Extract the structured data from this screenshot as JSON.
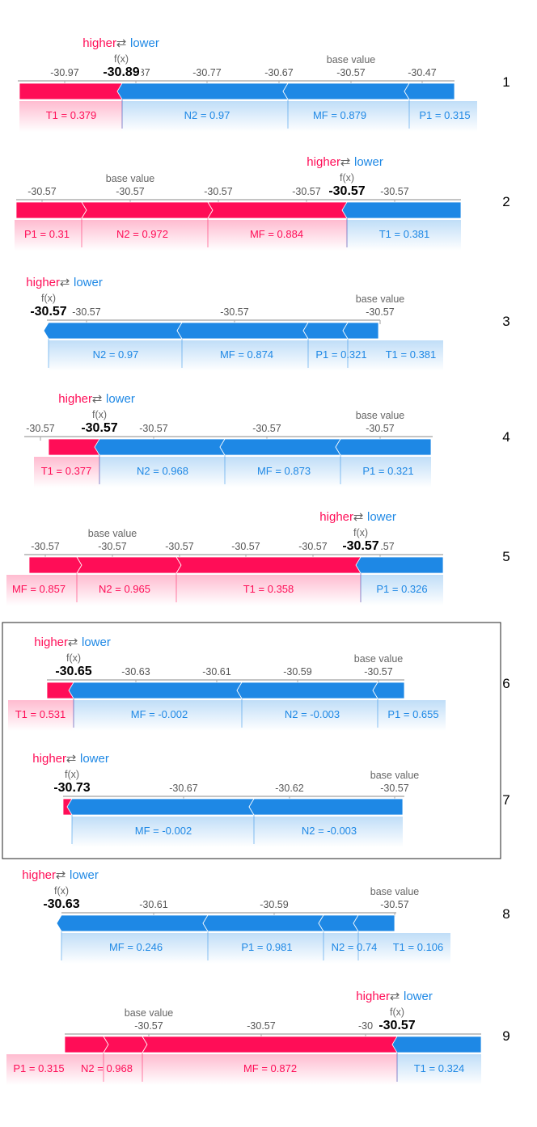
{
  "legend": {
    "higher": "higher",
    "lower": "lower",
    "fx_label": "f(x)",
    "base_label": "base value"
  },
  "colors": {
    "positive": "#ff0d57",
    "negative": "#1e88e5",
    "axis": "#b0b0b0",
    "tick_text": "#555555"
  },
  "chart_data": [
    {
      "type": "force",
      "row_label": "1",
      "fx_display": "-30.89",
      "ticks": [
        "-30.97",
        "-30.87",
        "-30.77",
        "-30.67",
        "-30.57",
        "-30.47"
      ],
      "positive": [
        {
          "label": "T1 = 0.379"
        }
      ],
      "negative": [
        {
          "label": "N2 = 0.97"
        },
        {
          "label": "MF = 0.879"
        },
        {
          "label": "P1 = 0.315"
        }
      ]
    },
    {
      "type": "force",
      "row_label": "2",
      "fx_display": "-30.57",
      "ticks": [
        "-30.57",
        "-30.57",
        "-30.57",
        "-30.57",
        "-30.57"
      ],
      "positive": [
        {
          "label": "P1 = 0.31"
        },
        {
          "label": "N2 = 0.972"
        },
        {
          "label": "MF = 0.884"
        }
      ],
      "negative": [
        {
          "label": "T1 = 0.381"
        }
      ]
    },
    {
      "type": "force",
      "row_label": "3",
      "fx_display": "-30.57",
      "ticks": [
        "-30.57",
        "-30.57",
        "-30.57"
      ],
      "positive": [],
      "negative": [
        {
          "label": "N2 = 0.97"
        },
        {
          "label": "MF = 0.874"
        },
        {
          "label": "P1 = 0.321"
        },
        {
          "label": "T1 = 0.381"
        }
      ]
    },
    {
      "type": "force",
      "row_label": "4",
      "fx_display": "-30.57",
      "ticks": [
        "-30.57",
        "-30.57",
        "-30.57",
        "-30.57"
      ],
      "positive": [
        {
          "label": "T1 = 0.377"
        }
      ],
      "negative": [
        {
          "label": "N2 = 0.968"
        },
        {
          "label": "MF = 0.873"
        },
        {
          "label": "P1 = 0.321"
        }
      ]
    },
    {
      "type": "force",
      "row_label": "5",
      "fx_display": "-30.57",
      "ticks": [
        "-30.57",
        "-30.57",
        "-30.57",
        "-30.57",
        "-30.57",
        "-30.57"
      ],
      "positive": [
        {
          "label": "MF = 0.857"
        },
        {
          "label": "N2 = 0.965"
        },
        {
          "label": "T1 = 0.358"
        }
      ],
      "negative": [
        {
          "label": "P1 = 0.326"
        }
      ]
    },
    {
      "type": "force",
      "row_label": "6",
      "fx_display": "-30.65",
      "ticks": [
        "-30.63",
        "-30.61",
        "-30.59",
        "-30.57"
      ],
      "positive": [
        {
          "label": "T1 = 0.531"
        }
      ],
      "negative": [
        {
          "label": "MF = -0.002"
        },
        {
          "label": "N2 = -0.003"
        },
        {
          "label": "P1 = 0.655"
        }
      ]
    },
    {
      "type": "force",
      "row_label": "7",
      "fx_display": "-30.73",
      "ticks": [
        "-30.67",
        "-30.62",
        "-30.57"
      ],
      "positive": [],
      "negative": [
        {
          "label": "MF = -0.002"
        },
        {
          "label": "N2 = -0.003"
        }
      ]
    },
    {
      "type": "force",
      "row_label": "8",
      "fx_display": "-30.63",
      "ticks": [
        "-30.61",
        "-30.59",
        "-30.57"
      ],
      "positive": [],
      "negative": [
        {
          "label": "MF = 0.246"
        },
        {
          "label": "P1 = 0.981"
        },
        {
          "label": "N2 = 0.74"
        },
        {
          "label": "T1 = 0.106"
        }
      ]
    },
    {
      "type": "force",
      "row_label": "9",
      "fx_display": "-30.57",
      "ticks": [
        "-30.57",
        "-30.57",
        "-30"
      ],
      "positive": [
        {
          "label": "P1 = 0.315"
        },
        {
          "label": "N2 = 0.968"
        },
        {
          "label": "MF = 0.872"
        }
      ],
      "negative": [
        {
          "label": "T1 = 0.324"
        }
      ]
    }
  ]
}
